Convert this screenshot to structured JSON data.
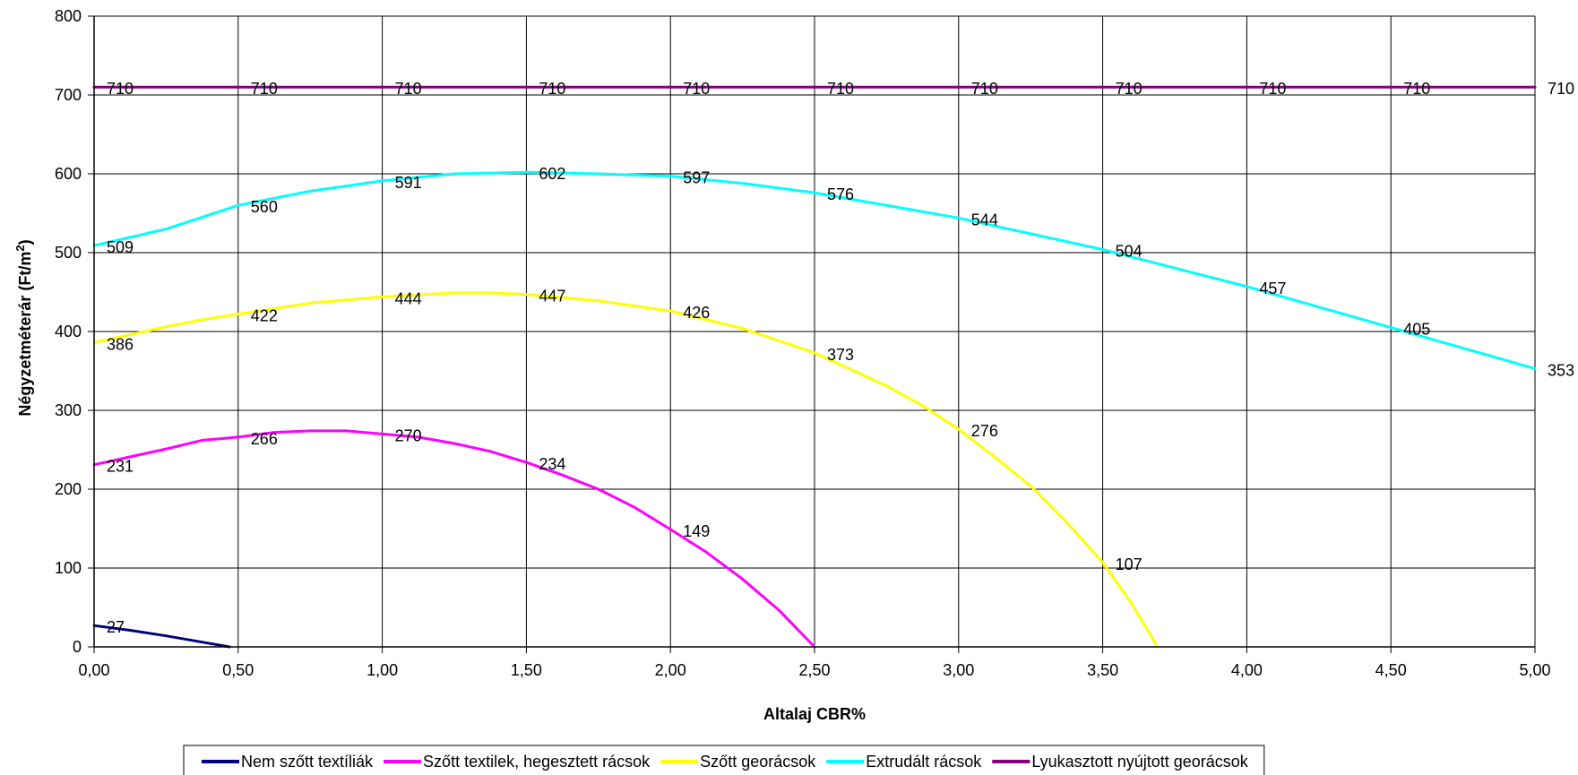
{
  "chart_data": {
    "type": "line",
    "title": "",
    "xlabel": "Altalaj CBR%",
    "ylabel_main": "Négyzetméterár (Ft/m",
    "ylabel_sup": "2",
    "ylabel_tail": ")",
    "xlim": [
      0,
      5
    ],
    "ylim": [
      0,
      800
    ],
    "x_ticks": [
      0,
      0.5,
      1,
      1.5,
      2,
      2.5,
      3,
      3.5,
      4,
      4.5,
      5
    ],
    "x_tick_labels": [
      "0,00",
      "0,50",
      "1,00",
      "1,50",
      "2,00",
      "2,50",
      "3,00",
      "3,50",
      "4,00",
      "4,50",
      "5,00"
    ],
    "y_ticks": [
      0,
      100,
      200,
      300,
      400,
      500,
      600,
      700,
      800
    ],
    "y_tick_labels": [
      "0",
      "100",
      "200",
      "300",
      "400",
      "500",
      "600",
      "700",
      "800"
    ],
    "grid": true,
    "legend_position": "bottom",
    "series": [
      {
        "name": "Nem szőtt textíliák",
        "color": "#000080",
        "points": [
          [
            0,
            27
          ],
          [
            0.125,
            21
          ],
          [
            0.25,
            14
          ],
          [
            0.375,
            6
          ],
          [
            0.47,
            0
          ]
        ],
        "labels": [
          {
            "x": 0,
            "y": 27,
            "text": "27"
          }
        ]
      },
      {
        "name": "Szőtt textilek, hegesztett rácsok",
        "color": "#ff00ff",
        "points": [
          [
            0,
            231
          ],
          [
            0.125,
            241
          ],
          [
            0.25,
            251
          ],
          [
            0.375,
            262
          ],
          [
            0.5,
            266
          ],
          [
            0.625,
            272
          ],
          [
            0.75,
            274
          ],
          [
            0.875,
            274
          ],
          [
            1,
            270
          ],
          [
            1.125,
            266
          ],
          [
            1.25,
            258
          ],
          [
            1.375,
            248
          ],
          [
            1.5,
            234
          ],
          [
            1.625,
            218
          ],
          [
            1.75,
            200
          ],
          [
            1.875,
            177
          ],
          [
            2,
            149
          ],
          [
            2.125,
            120
          ],
          [
            2.25,
            86
          ],
          [
            2.375,
            47
          ],
          [
            2.5,
            0
          ]
        ],
        "labels": [
          {
            "x": 0,
            "y": 231,
            "text": "231"
          },
          {
            "x": 0.5,
            "y": 266,
            "text": "266"
          },
          {
            "x": 1,
            "y": 270,
            "text": "270"
          },
          {
            "x": 1.5,
            "y": 234,
            "text": "234"
          },
          {
            "x": 2,
            "y": 149,
            "text": "149"
          }
        ]
      },
      {
        "name": "Szőtt georácsok",
        "color": "#ffff00",
        "points": [
          [
            0,
            386
          ],
          [
            0.125,
            396
          ],
          [
            0.25,
            406
          ],
          [
            0.375,
            415
          ],
          [
            0.5,
            422
          ],
          [
            0.75,
            436
          ],
          [
            1,
            444
          ],
          [
            1.25,
            449
          ],
          [
            1.375,
            449
          ],
          [
            1.5,
            447
          ],
          [
            1.75,
            439
          ],
          [
            2,
            426
          ],
          [
            2.25,
            404
          ],
          [
            2.5,
            373
          ],
          [
            2.75,
            331
          ],
          [
            2.875,
            306
          ],
          [
            3,
            276
          ],
          [
            3.125,
            241
          ],
          [
            3.25,
            204
          ],
          [
            3.375,
            158
          ],
          [
            3.5,
            107
          ],
          [
            3.6,
            55
          ],
          [
            3.69,
            0
          ]
        ],
        "labels": [
          {
            "x": 0,
            "y": 386,
            "text": "386"
          },
          {
            "x": 0.5,
            "y": 422,
            "text": "422"
          },
          {
            "x": 1,
            "y": 444,
            "text": "444"
          },
          {
            "x": 1.5,
            "y": 447,
            "text": "447"
          },
          {
            "x": 2,
            "y": 426,
            "text": "426"
          },
          {
            "x": 2.5,
            "y": 373,
            "text": "373"
          },
          {
            "x": 3,
            "y": 276,
            "text": "276"
          },
          {
            "x": 3.5,
            "y": 107,
            "text": "107"
          }
        ]
      },
      {
        "name": "Extrudált rácsok",
        "color": "#00ffff",
        "points": [
          [
            0,
            509
          ],
          [
            0.25,
            530
          ],
          [
            0.375,
            545
          ],
          [
            0.5,
            560
          ],
          [
            0.75,
            578
          ],
          [
            1,
            591
          ],
          [
            1.25,
            600
          ],
          [
            1.5,
            602
          ],
          [
            1.75,
            600
          ],
          [
            2,
            597
          ],
          [
            2.25,
            588
          ],
          [
            2.5,
            576
          ],
          [
            3,
            544
          ],
          [
            3.5,
            504
          ],
          [
            4,
            457
          ],
          [
            4.5,
            405
          ],
          [
            5,
            353
          ]
        ],
        "labels": [
          {
            "x": 0,
            "y": 509,
            "text": "509"
          },
          {
            "x": 0.5,
            "y": 560,
            "text": "560"
          },
          {
            "x": 1,
            "y": 591,
            "text": "591"
          },
          {
            "x": 1.5,
            "y": 602,
            "text": "602"
          },
          {
            "x": 2,
            "y": 597,
            "text": "597"
          },
          {
            "x": 2.5,
            "y": 576,
            "text": "576"
          },
          {
            "x": 3,
            "y": 544,
            "text": "544"
          },
          {
            "x": 3.5,
            "y": 504,
            "text": "504"
          },
          {
            "x": 4,
            "y": 457,
            "text": "457"
          },
          {
            "x": 4.5,
            "y": 405,
            "text": "405"
          },
          {
            "x": 5,
            "y": 353,
            "text": "353"
          }
        ]
      },
      {
        "name": "Lyukasztott nyújtott georácsok",
        "color": "#800080",
        "points": [
          [
            0,
            710
          ],
          [
            5,
            710
          ]
        ],
        "labels": [
          {
            "x": 0,
            "y": 710,
            "text": "710"
          },
          {
            "x": 0.5,
            "y": 710,
            "text": "710"
          },
          {
            "x": 1,
            "y": 710,
            "text": "710"
          },
          {
            "x": 1.5,
            "y": 710,
            "text": "710"
          },
          {
            "x": 2,
            "y": 710,
            "text": "710"
          },
          {
            "x": 2.5,
            "y": 710,
            "text": "710"
          },
          {
            "x": 3,
            "y": 710,
            "text": "710"
          },
          {
            "x": 3.5,
            "y": 710,
            "text": "710"
          },
          {
            "x": 4,
            "y": 710,
            "text": "710"
          },
          {
            "x": 4.5,
            "y": 710,
            "text": "710"
          },
          {
            "x": 5,
            "y": 710,
            "text": "710"
          }
        ]
      }
    ]
  }
}
